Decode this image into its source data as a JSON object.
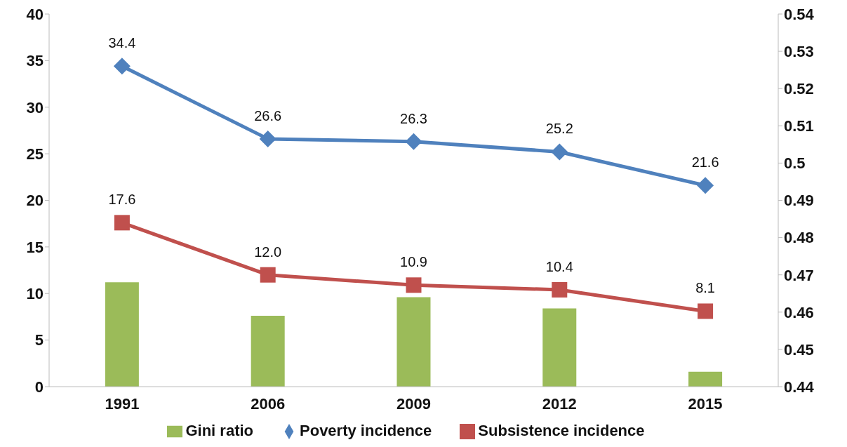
{
  "chart_data": {
    "type": "line",
    "categories": [
      "1991",
      "2006",
      "2009",
      "2012",
      "2015"
    ],
    "series": [
      {
        "name": "Gini ratio",
        "type": "bar",
        "axis": "y2",
        "color": "#9bbb59",
        "values": [
          0.468,
          0.459,
          0.464,
          0.461,
          0.444
        ]
      },
      {
        "name": "Poverty incidence",
        "color": "#4f81bd",
        "marker": "diamond",
        "values": [
          34.4,
          26.6,
          26.3,
          25.2,
          21.6
        ],
        "value_labels": [
          "34.4",
          "26.6",
          "26.3",
          "25.2",
          "21.6"
        ]
      },
      {
        "name": "Subsistence incidence",
        "color": "#c0504d",
        "marker": "square",
        "values": [
          17.6,
          12.0,
          10.9,
          10.4,
          8.1
        ],
        "value_labels": [
          "17.6",
          "12.0",
          "10.9",
          "10.4",
          "8.1"
        ]
      }
    ],
    "ylim": [
      0,
      40
    ],
    "yticks": [
      0,
      5,
      10,
      15,
      20,
      25,
      30,
      35,
      40
    ],
    "y2lim": [
      0.44,
      0.54
    ],
    "y2ticks": [
      0.44,
      0.45,
      0.46,
      0.47,
      0.48,
      0.49,
      0.5,
      0.51,
      0.52,
      0.53,
      0.54
    ],
    "grid": false,
    "legend": "bottom"
  }
}
